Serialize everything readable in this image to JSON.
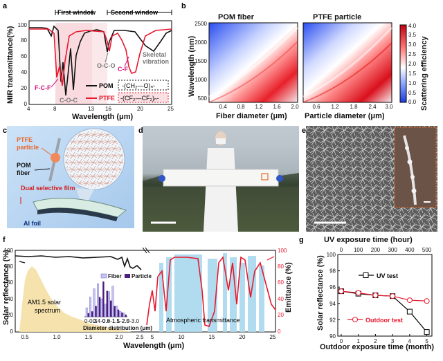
{
  "panels": {
    "a": "a",
    "b": "b",
    "c": "c",
    "d": "d",
    "e": "e",
    "f": "f",
    "g": "g"
  },
  "panel_a": {
    "first_window": "First window",
    "second_window": "Second window",
    "ylabel": "MIR transmittance(%)",
    "xlabel": "Wavelength (μm)",
    "x_ticks": [
      "4",
      "8",
      "13",
      "16",
      "20",
      "25"
    ],
    "y_ticks": [
      "0",
      "20",
      "40",
      "60",
      "80",
      "100"
    ],
    "ann_fcf": "F-C-F",
    "ann_coc": "C-O-C",
    "ann_oco": "O-C-O",
    "ann_cf": "C-F",
    "ann_skel1": "Skeletal",
    "ann_skel2": "vibration",
    "legend_pom": "POM",
    "legend_pom_formula": "-(CH₂—O)ₙ-",
    "legend_ptfe": "PTFE",
    "legend_ptfe_formula": "-(CF₂—CF₂)ₙ-",
    "colors": {
      "pom": "#111111",
      "ptfe": "#e8172d",
      "window": "#f6c9cf"
    }
  },
  "panel_b": {
    "title_left": "POM fiber",
    "title_right": "PTFE particle",
    "ylabel": "Wavelength (nm)",
    "xlabel_left": "Fiber diameter (μm)",
    "xlabel_right": "Particle diameter (μm)",
    "y_ticks": [
      "500",
      "1000",
      "1500",
      "2000",
      "2500"
    ],
    "x_ticks_left": [
      "0.4",
      "0.8",
      "1.2",
      "1.6",
      "2.0"
    ],
    "x_ticks_right": [
      "0.6",
      "1.2",
      "1.8",
      "2.4",
      "3.0"
    ],
    "colorbar_label": "Scattering efficiency",
    "colorbar_ticks": [
      "0.0",
      "0.5",
      "1.0",
      "1.5",
      "2.0",
      "2.5",
      "3.0",
      "3.5",
      "4.0"
    ]
  },
  "panel_c": {
    "ptfe_particle": "PTFE particle",
    "pom_fiber": "POM fiber",
    "dual_film": "Dual selective film",
    "al_foil": "Al foil"
  },
  "panel_f": {
    "ylabel_left": "Solar reflectance (%)",
    "ylabel_right": "Emittance (%)",
    "xlabel": "Wavelength (μm)",
    "x_ticks_left": [
      "0.5",
      "1.0",
      "1.5",
      "2.0",
      "2.5"
    ],
    "x_ticks_right": [
      "5",
      "10",
      "15",
      "20",
      "25"
    ],
    "y_ticks": [
      "0",
      "20",
      "40",
      "60",
      "80",
      "100"
    ],
    "am15_1": "AM1.5 solar",
    "am15_2": "spectrum",
    "atm": "Atmospheric transmittance",
    "inset_legend_fiber": "Fiber",
    "inset_legend_particle": "Particle",
    "inset_xlabel": "Diameter distribution (μm)",
    "inset_ticks": [
      "0-0.3",
      "0.4-0.6",
      "0.9-1.1",
      "1.5-2.0",
      "2.5-3.0"
    ],
    "inset_fiber": [
      0.25,
      0.55,
      0.78,
      0.92,
      0.5,
      0.35,
      0.7,
      0.85,
      0.3,
      0.15,
      0.1
    ],
    "inset_particle": [
      0.1,
      0.15,
      0.3,
      0.55,
      0.98,
      0.72,
      0.45,
      0.3,
      0.2,
      0.12,
      0.06
    ]
  },
  "panel_g": {
    "top_xlabel": "UV exposure time (hour)",
    "top_ticks": [
      "0",
      "100",
      "200",
      "300",
      "400",
      "500"
    ],
    "bottom_xlabel": "Outdoor exposure time (month)",
    "bottom_ticks": [
      "0",
      "1",
      "2",
      "3",
      "4",
      "5"
    ],
    "ylabel": "Solar reflectance (%)",
    "y_ticks": [
      "90",
      "92",
      "94",
      "96",
      "98",
      "100"
    ],
    "legend_uv": "UV test",
    "legend_outdoor": "Outdoor test"
  },
  "chart_data": [
    {
      "type": "line",
      "panel": "g",
      "title": "",
      "xlabel": "Outdoor exposure time (month)",
      "ylabel": "Solar reflectance (%)",
      "x": [
        0,
        1,
        2,
        3,
        4,
        5
      ],
      "xlim": [
        -0.2,
        5.3
      ],
      "ylim": [
        90,
        100
      ],
      "series": [
        {
          "name": "UV test",
          "values": [
            95.5,
            95.2,
            95.0,
            94.9,
            93.0,
            90.5
          ],
          "color": "#000000",
          "marker": "square"
        },
        {
          "name": "Outdoor test",
          "values": [
            95.5,
            95.3,
            95.0,
            94.9,
            94.4,
            94.3
          ],
          "color": "#e8172d",
          "marker": "circle"
        }
      ]
    }
  ]
}
